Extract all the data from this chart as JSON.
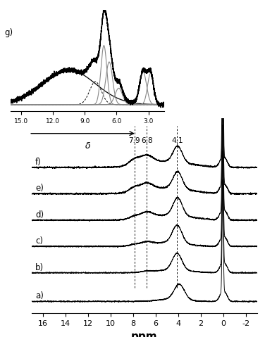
{
  "xlabel": "ppm",
  "xlim": [
    17,
    -3
  ],
  "x_ticks": [
    16,
    14,
    12,
    10,
    8,
    6,
    4,
    2,
    0,
    -2
  ],
  "x_tick_labels": [
    "16",
    "14",
    "12",
    "10",
    "8",
    "6",
    "4",
    "2",
    "0",
    "-2"
  ],
  "spectrum_labels": [
    "a)",
    "b)",
    "c)",
    "d)",
    "e)",
    "f)"
  ],
  "dashed_lines": [
    7.9,
    6.8,
    4.1
  ],
  "dashed_labels": [
    "7.9",
    "6.8",
    "4.1"
  ],
  "inset_x_ticks": [
    15.0,
    12.0,
    9.0,
    6.0,
    3.0
  ],
  "inset_x_tick_labels": [
    "15.0",
    "12.0",
    "9.0",
    "6.0",
    "3.0"
  ],
  "offsets": [
    0,
    0.72,
    1.38,
    2.04,
    2.7,
    3.36
  ],
  "background_color": "#ffffff"
}
